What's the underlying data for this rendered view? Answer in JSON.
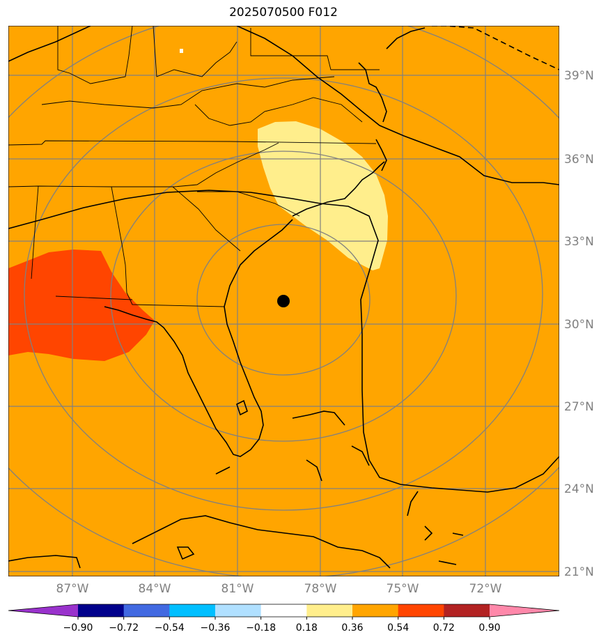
{
  "title": "2025070500 F012",
  "map": {
    "lat_labels": [
      "39°N",
      "36°N",
      "33°N",
      "30°N",
      "27°N",
      "24°N",
      "21°N"
    ],
    "lon_labels": [
      "87°W",
      "84°W",
      "81°W",
      "78°W",
      "75°W",
      "72°W"
    ],
    "storm_center": {
      "lat": 30.9,
      "lon": -79.6
    },
    "colors": {
      "background": "#ffa500",
      "light_yellow": "#ffee8c",
      "orange_red": "#ff4500",
      "gridline": "#808080",
      "coast": "#000000"
    }
  },
  "colorbar": {
    "ticks": [
      "−0.90",
      "−0.72",
      "−0.54",
      "−0.36",
      "−0.18",
      "0.18",
      "0.36",
      "0.54",
      "0.72",
      "0.90"
    ],
    "colors": [
      "#9932cc",
      "#00008b",
      "#4169e1",
      "#00bfff",
      "#b0e0ff",
      "#ffffff",
      "#ffee8c",
      "#ffa500",
      "#ff4500",
      "#b22222",
      "#ff88aa"
    ]
  }
}
